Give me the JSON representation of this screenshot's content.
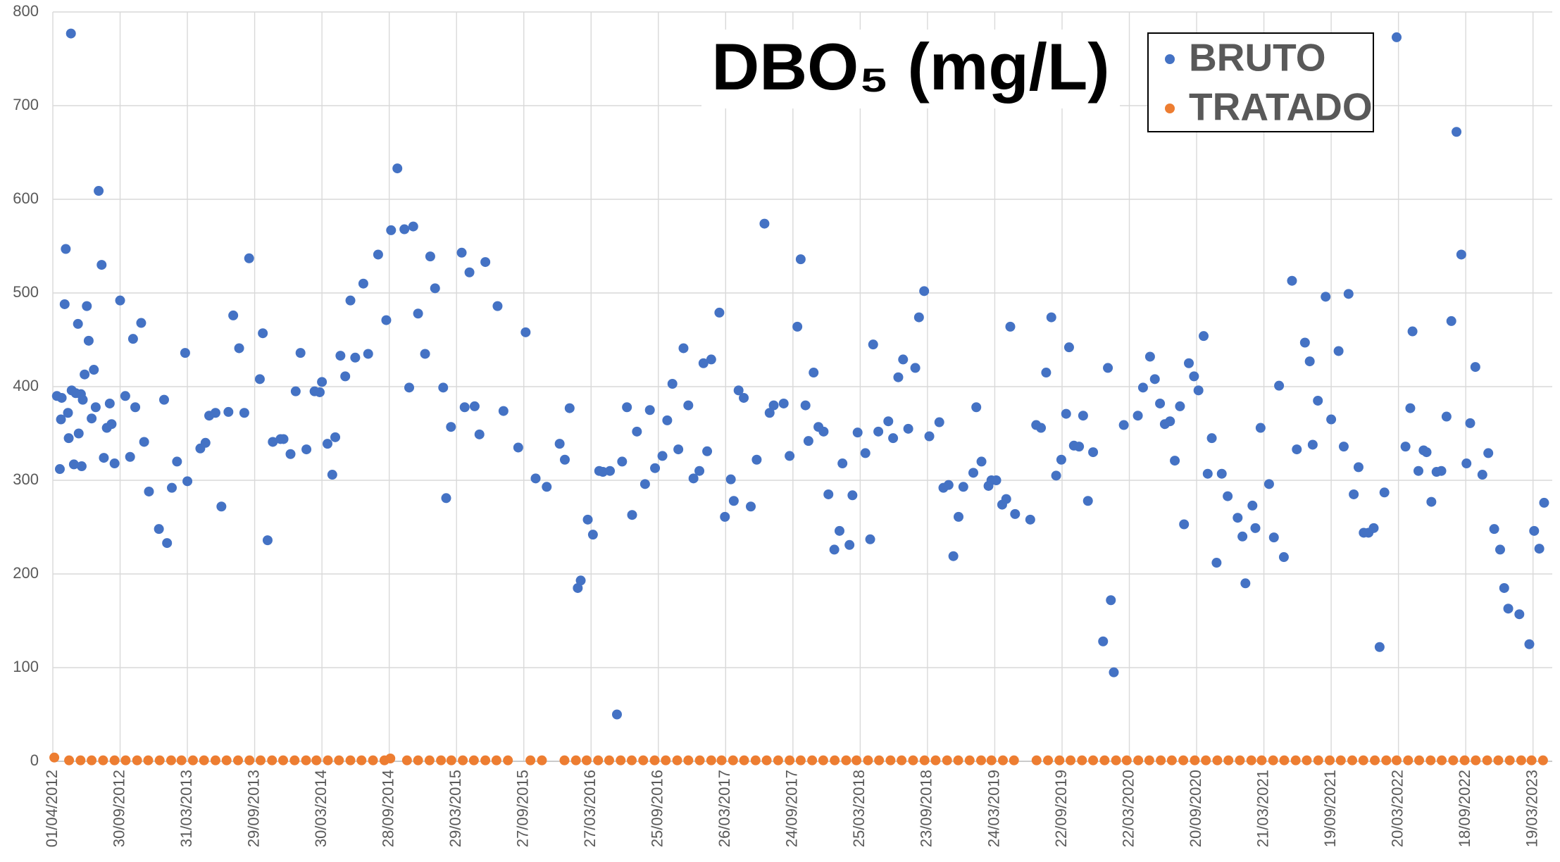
{
  "chart_data": {
    "type": "scatter",
    "title": "DBO₅ (mg/L)",
    "xlim": [
      "01/04/2012",
      "10/05/2023"
    ],
    "xticks": [
      "01/04/2012",
      "30/09/2012",
      "31/03/2013",
      "29/09/2013",
      "30/03/2014",
      "28/09/2014",
      "29/03/2015",
      "27/09/2015",
      "27/03/2016",
      "25/09/2016",
      "26/03/2017",
      "24/09/2017",
      "25/03/2018",
      "23/09/2018",
      "24/03/2019",
      "22/09/2019",
      "22/03/2020",
      "20/09/2020",
      "21/03/2021",
      "19/09/2021",
      "20/03/2022",
      "18/09/2022",
      "19/03/2023"
    ],
    "ylim": [
      0,
      800
    ],
    "yticks": [
      0,
      100,
      200,
      300,
      400,
      500,
      600,
      700,
      800
    ],
    "grid": true,
    "legend": "top-right",
    "series": [
      {
        "name": "BRUTO",
        "color": "#4472c4",
        "x": [
          "12/04/2012",
          "20/04/2012",
          "23/04/2012",
          "25/04/2012",
          "03/05/2012",
          "06/05/2012",
          "12/05/2012",
          "14/05/2012",
          "20/05/2012",
          "22/05/2012",
          "28/05/2012",
          "02/06/2012",
          "08/06/2012",
          "10/06/2012",
          "16/06/2012",
          "18/06/2012",
          "21/06/2012",
          "26/06/2012",
          "02/07/2012",
          "07/07/2012",
          "15/07/2012",
          "21/07/2012",
          "26/07/2012",
          "03/08/2012",
          "11/08/2012",
          "17/08/2012",
          "25/08/2012",
          "02/09/2012",
          "07/09/2012",
          "15/09/2012",
          "30/09/2012",
          "14/10/2012",
          "27/10/2012",
          "04/11/2012",
          "10/11/2012",
          "26/11/2012",
          "04/12/2012",
          "17/12/2012",
          "13/01/2013",
          "27/01/2013",
          "04/02/2013",
          "17/02/2013",
          "03/03/2013",
          "25/03/2013",
          "31/03/2013",
          "05/05/2013",
          "19/05/2013",
          "29/05/2013",
          "15/06/2013",
          "01/07/2013",
          "20/07/2013",
          "02/08/2013",
          "18/08/2013",
          "01/09/2013",
          "14/09/2013",
          "13/10/2013",
          "21/10/2013",
          "03/11/2013",
          "17/11/2013",
          "08/12/2013",
          "16/12/2013",
          "04/01/2014",
          "18/01/2014",
          "31/01/2014",
          "16/02/2014",
          "10/03/2014",
          "24/03/2014",
          "30/03/2014",
          "14/04/2014",
          "27/04/2014",
          "05/05/2014",
          "19/05/2014",
          "01/06/2014",
          "15/06/2014",
          "28/06/2014",
          "20/07/2014",
          "02/08/2014",
          "29/08/2014",
          "20/09/2014",
          "03/10/2014",
          "20/10/2014",
          "08/11/2014",
          "21/11/2014",
          "02/12/2014",
          "15/12/2014",
          "03/01/2015",
          "17/01/2015",
          "30/01/2015",
          "21/02/2015",
          "01/03/2015",
          "14/03/2015",
          "12/04/2015",
          "20/04/2015",
          "03/05/2015",
          "17/05/2015",
          "30/05/2015",
          "15/06/2015",
          "18/07/2015",
          "03/08/2015",
          "12/09/2015",
          "02/10/2015",
          "29/10/2015",
          "28/11/2015",
          "02/01/2016",
          "16/01/2016",
          "29/01/2016",
          "20/02/2016",
          "28/02/2016",
          "18/03/2016",
          "01/04/2016",
          "18/04/2016",
          "28/04/2016",
          "17/05/2016",
          "05/06/2016",
          "19/06/2016",
          "02/07/2016",
          "16/07/2016",
          "29/07/2016",
          "20/08/2016",
          "02/09/2016",
          "16/09/2016",
          "06/10/2016",
          "19/10/2016",
          "02/11/2016",
          "18/11/2016",
          "02/12/2016",
          "15/12/2016",
          "29/12/2016",
          "14/01/2017",
          "25/01/2017",
          "04/02/2017",
          "15/02/2017",
          "09/03/2017",
          "24/03/2017",
          "09/04/2017",
          "17/04/2017",
          "30/04/2017",
          "14/05/2017",
          "02/06/2017",
          "18/06/2017",
          "09/07/2017",
          "23/07/2017",
          "03/08/2017",
          "30/08/2017",
          "15/09/2017",
          "06/10/2017",
          "15/10/2017",
          "28/10/2017",
          "05/11/2017",
          "19/11/2017",
          "02/12/2017",
          "16/12/2017",
          "29/12/2017",
          "14/01/2018",
          "28/01/2018",
          "05/02/2018",
          "24/02/2018",
          "04/03/2018",
          "18/03/2018",
          "08/04/2018",
          "21/04/2018",
          "29/04/2018",
          "13/05/2018",
          "09/06/2018",
          "22/06/2018",
          "06/07/2018",
          "19/07/2018",
          "02/08/2018",
          "21/08/2018",
          "31/08/2018",
          "14/09/2018",
          "28/09/2018",
          "25/10/2018",
          "05/11/2018",
          "19/11/2018",
          "02/12/2018",
          "16/12/2018",
          "29/12/2018",
          "25/01/2019",
          "02/02/2019",
          "16/02/2019",
          "07/03/2019",
          "15/03/2019",
          "28/03/2019",
          "13/04/2019",
          "24/04/2019",
          "05/05/2019",
          "18/05/2019",
          "28/06/2019",
          "14/07/2019",
          "27/07/2019",
          "10/08/2019",
          "24/08/2019",
          "06/09/2019",
          "20/09/2019",
          "03/10/2019",
          "11/10/2019",
          "24/10/2019",
          "07/11/2019",
          "18/11/2019",
          "01/12/2019",
          "15/12/2019",
          "11/01/2020",
          "24/01/2020",
          "01/02/2020",
          "09/02/2020",
          "07/03/2020",
          "14/04/2020",
          "28/04/2020",
          "17/05/2020",
          "30/05/2020",
          "13/06/2020",
          "26/06/2020",
          "10/07/2020",
          "23/07/2020",
          "06/08/2020",
          "17/08/2020",
          "30/08/2020",
          "13/09/2020",
          "25/09/2020",
          "09/10/2020",
          "20/10/2020",
          "31/10/2020",
          "13/11/2020",
          "27/11/2020",
          "13/12/2020",
          "09/01/2021",
          "22/01/2021",
          "30/01/2021",
          "18/02/2021",
          "26/02/2021",
          "12/03/2021",
          "04/04/2021",
          "17/04/2021",
          "01/05/2021",
          "14/05/2021",
          "05/06/2021",
          "18/06/2021",
          "10/07/2021",
          "23/07/2021",
          "31/07/2021",
          "14/08/2021",
          "04/09/2021",
          "19/09/2021",
          "09/10/2021",
          "23/10/2021",
          "05/11/2021",
          "19/11/2021",
          "02/12/2021",
          "16/12/2021",
          "29/12/2021",
          "12/01/2022",
          "28/01/2022",
          "10/02/2022",
          "15/03/2022",
          "08/04/2022",
          "21/04/2022",
          "27/04/2022",
          "13/05/2022",
          "27/05/2022",
          "04/06/2022",
          "17/06/2022",
          "01/07/2022",
          "14/07/2022",
          "28/07/2022",
          "10/08/2022",
          "24/08/2022",
          "06/09/2022",
          "20/09/2022",
          "30/09/2022",
          "14/10/2022",
          "02/11/2022",
          "18/11/2022",
          "04/12/2022",
          "20/12/2022",
          "31/12/2022",
          "11/01/2023",
          "10/02/2023",
          "09/03/2023",
          "22/03/2023",
          "05/04/2023",
          "18/04/2023"
        ],
        "values": [
          390,
          312,
          365,
          388,
          488,
          547,
          372,
          345,
          777,
          396,
          317,
          393,
          467,
          350,
          392,
          315,
          386,
          413,
          486,
          449,
          366,
          418,
          378,
          609,
          530,
          324,
          356,
          382,
          360,
          318,
          492,
          390,
          325,
          451,
          378,
          468,
          341,
          288,
          248,
          386,
          233,
          292,
          320,
          436,
          299,
          334,
          340,
          369,
          372,
          272,
          373,
          476,
          441,
          372,
          537,
          408,
          457,
          236,
          341,
          344,
          344,
          328,
          395,
          436,
          333,
          395,
          394,
          405,
          339,
          306,
          346,
          433,
          411,
          492,
          431,
          510,
          435,
          541,
          471,
          567,
          633,
          568,
          399,
          571,
          478,
          435,
          539,
          505,
          399,
          281,
          357,
          543,
          378,
          522,
          379,
          349,
          533,
          486,
          374,
          335,
          458,
          302,
          293,
          339,
          322,
          377,
          185,
          193,
          258,
          242,
          310,
          309,
          310,
          50,
          320,
          378,
          263,
          352,
          296,
          375,
          313,
          326,
          364,
          403,
          333,
          441,
          380,
          302,
          310,
          425,
          331,
          429,
          479,
          261,
          301,
          278,
          396,
          388,
          272,
          322,
          574,
          372,
          380,
          382,
          326,
          464,
          536,
          380,
          342,
          415,
          357,
          352,
          285,
          226,
          246,
          318,
          231,
          284,
          351,
          329,
          237,
          445,
          352,
          363,
          345,
          410,
          429,
          355,
          420,
          474,
          502,
          347,
          362,
          292,
          295,
          219,
          261,
          293,
          308,
          378,
          320,
          294,
          300,
          300,
          274,
          280,
          464,
          264,
          258,
          359,
          356,
          415,
          474,
          305,
          322,
          371,
          442,
          337,
          336,
          369,
          278,
          330,
          128,
          420,
          172,
          95,
          359,
          369,
          399,
          432,
          408,
          382,
          360,
          363,
          321,
          379,
          253,
          425,
          411,
          396,
          454,
          307,
          345,
          212,
          307,
          283,
          260,
          240,
          190,
          273,
          249,
          356,
          296,
          239,
          401,
          218,
          513,
          333,
          447,
          427,
          338,
          385,
          496,
          365,
          438,
          336,
          499,
          285,
          314,
          244,
          244,
          249,
          122,
          287,
          773,
          336,
          377,
          459,
          310,
          332,
          330,
          277,
          309,
          310,
          368,
          470,
          672,
          541,
          318,
          361,
          421,
          306,
          329,
          248,
          226,
          185,
          163,
          157,
          125,
          246,
          227,
          276
        ]
      },
      {
        "name": "TRATADO",
        "color": "#ed7d31",
        "x": [
          "05/04/2012",
          "15/05/2012",
          "15/06/2012",
          "15/07/2012",
          "15/08/2012",
          "15/09/2012",
          "15/10/2012",
          "15/11/2012",
          "15/12/2012",
          "15/01/2013",
          "15/02/2013",
          "15/03/2013",
          "15/04/2013",
          "15/05/2013",
          "15/06/2013",
          "15/07/2013",
          "15/08/2013",
          "15/09/2013",
          "15/10/2013",
          "15/11/2013",
          "15/12/2013",
          "15/01/2014",
          "15/02/2014",
          "15/03/2014",
          "15/04/2014",
          "15/05/2014",
          "15/06/2014",
          "15/07/2014",
          "15/08/2014",
          "15/09/2014",
          "01/10/2014",
          "15/11/2014",
          "15/12/2014",
          "15/01/2015",
          "15/02/2015",
          "15/03/2015",
          "15/04/2015",
          "15/05/2015",
          "15/06/2015",
          "15/07/2015",
          "15/08/2015",
          "15/10/2015",
          "15/11/2015",
          "15/01/2016",
          "15/02/2016",
          "15/03/2016",
          "15/04/2016",
          "15/05/2016",
          "15/06/2016",
          "15/07/2016",
          "15/08/2016",
          "15/09/2016",
          "15/10/2016",
          "15/11/2016",
          "15/12/2016",
          "15/01/2017",
          "15/02/2017",
          "15/03/2017",
          "15/04/2017",
          "15/05/2017",
          "15/06/2017",
          "15/07/2017",
          "15/08/2017",
          "15/09/2017",
          "15/10/2017",
          "15/11/2017",
          "15/12/2017",
          "15/01/2018",
          "15/02/2018",
          "15/03/2018",
          "15/04/2018",
          "15/05/2018",
          "15/06/2018",
          "15/07/2018",
          "15/08/2018",
          "15/09/2018",
          "15/10/2018",
          "15/11/2018",
          "15/12/2018",
          "15/01/2019",
          "15/02/2019",
          "15/03/2019",
          "15/04/2019",
          "15/05/2019",
          "15/07/2019",
          "15/08/2019",
          "15/09/2019",
          "15/10/2019",
          "15/11/2019",
          "15/12/2019",
          "15/01/2020",
          "15/02/2020",
          "15/03/2020",
          "15/04/2020",
          "15/05/2020",
          "15/06/2020",
          "15/07/2020",
          "15/08/2020",
          "15/09/2020",
          "15/10/2020",
          "15/11/2020",
          "15/12/2020",
          "15/01/2021",
          "15/02/2021",
          "15/03/2021",
          "15/04/2021",
          "15/05/2021",
          "15/06/2021",
          "15/07/2021",
          "15/08/2021",
          "15/09/2021",
          "15/10/2021",
          "15/11/2021",
          "15/12/2021",
          "15/01/2022",
          "15/02/2022",
          "15/03/2022",
          "15/04/2022",
          "15/05/2022",
          "15/06/2022",
          "15/07/2022",
          "15/08/2022",
          "15/09/2022",
          "15/10/2022",
          "15/11/2022",
          "15/12/2022",
          "15/01/2023",
          "15/02/2023",
          "15/03/2023",
          "15/04/2023"
        ],
        "values": [
          4,
          1,
          1,
          1,
          1,
          1,
          1,
          1,
          1,
          1,
          1,
          1,
          1,
          1,
          1,
          1,
          1,
          1,
          1,
          1,
          1,
          1,
          1,
          1,
          1,
          1,
          1,
          1,
          1,
          1,
          3,
          1,
          1,
          1,
          1,
          1,
          1,
          1,
          1,
          1,
          1,
          1,
          1,
          1,
          1,
          1,
          1,
          1,
          1,
          1,
          1,
          1,
          1,
          1,
          1,
          1,
          1,
          1,
          1,
          1,
          1,
          1,
          1,
          1,
          1,
          1,
          1,
          1,
          1,
          1,
          1,
          1,
          1,
          1,
          1,
          1,
          1,
          1,
          1,
          1,
          1,
          1,
          1,
          1,
          1,
          1,
          1,
          1,
          1,
          1,
          1,
          1,
          1,
          1,
          1,
          1,
          1,
          1,
          1,
          1,
          1,
          1,
          1,
          1,
          1,
          1,
          1,
          1,
          1,
          1,
          1,
          1,
          1,
          1,
          1,
          1,
          1,
          1,
          1,
          1,
          1,
          1,
          1,
          1,
          1,
          1,
          1,
          1,
          1,
          1
        ]
      }
    ]
  }
}
